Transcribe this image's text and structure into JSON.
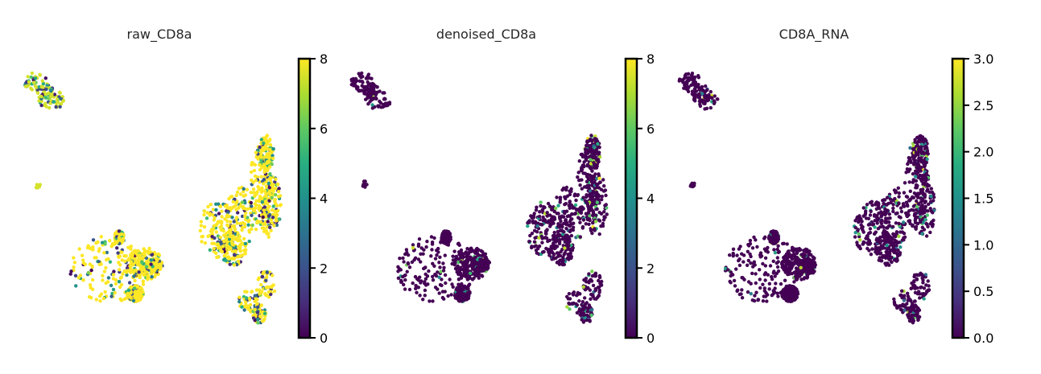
{
  "chart_data": [
    {
      "type": "scatter",
      "title": "raw_CD8a",
      "colormap": "viridis",
      "colorbar": {
        "min": 0,
        "max": 8,
        "ticks": [
          "0",
          "2",
          "4",
          "6",
          "8"
        ]
      },
      "clusters": [
        {
          "name": "top-small",
          "dominant_value": 7.5,
          "mixing": 0.35
        },
        {
          "name": "tiny-left",
          "dominant_value": 7.5,
          "mixing": 0.3
        },
        {
          "name": "right-large",
          "dominant_value": 8,
          "mixing": 0.3
        },
        {
          "name": "left-large",
          "dominant_value": 8,
          "mixing": 0.25
        },
        {
          "name": "bottom-right",
          "dominant_value": 8,
          "mixing": 0.35
        }
      ]
    },
    {
      "type": "scatter",
      "title": "denoised_CD8a",
      "colormap": "viridis",
      "colorbar": {
        "min": 0,
        "max": 8,
        "ticks": [
          "0",
          "2",
          "4",
          "6",
          "8"
        ]
      },
      "clusters": [
        {
          "name": "top-small",
          "dominant_value": 0,
          "mixing": 0.05
        },
        {
          "name": "tiny-left",
          "dominant_value": 0,
          "mixing": 0.0
        },
        {
          "name": "right-large",
          "dominant_value": 0,
          "mixing": 0.12
        },
        {
          "name": "left-large",
          "dominant_value": 0,
          "mixing": 0.05
        },
        {
          "name": "bottom-right",
          "dominant_value": 0,
          "mixing": 0.15
        }
      ]
    },
    {
      "type": "scatter",
      "title": "CD8A_RNA",
      "colormap": "viridis",
      "colorbar": {
        "min": 0.0,
        "max": 3.0,
        "ticks": [
          "0.0",
          "0.5",
          "1.0",
          "1.5",
          "2.0",
          "2.5",
          "3.0"
        ]
      },
      "clusters": [
        {
          "name": "top-small",
          "dominant_value": 0,
          "mixing": 0.05
        },
        {
          "name": "tiny-left",
          "dominant_value": 0,
          "mixing": 0.0
        },
        {
          "name": "right-large",
          "dominant_value": 0,
          "mixing": 0.1
        },
        {
          "name": "left-large",
          "dominant_value": 0,
          "mixing": 0.03
        },
        {
          "name": "bottom-right",
          "dominant_value": 0,
          "mixing": 0.12
        }
      ]
    }
  ]
}
